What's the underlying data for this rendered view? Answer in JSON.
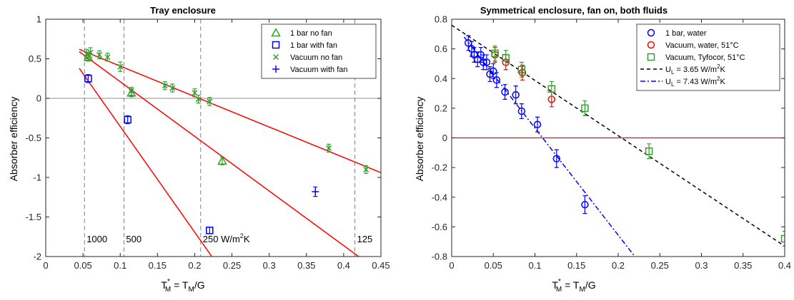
{
  "chart_data": [
    {
      "type": "scatter",
      "title": "Tray enclosure",
      "ylabel": "Absorber efficiency",
      "xlabel_parts": {
        "base": "T",
        "sup": "*",
        "sub": "M",
        "rest1": " = T",
        "sub2": "M",
        "rest2": "/G"
      },
      "xlim": [
        0,
        0.45
      ],
      "ylim": [
        -2,
        1
      ],
      "xticks": [
        0,
        0.05,
        0.1,
        0.15,
        0.2,
        0.25,
        0.3,
        0.35,
        0.4,
        0.45
      ],
      "xtick_labels": [
        "0",
        "0.05",
        "0.1",
        "0.15",
        "0.2",
        "0.25",
        "0.3",
        "0.35",
        "0.4",
        "0.45"
      ],
      "yticks": [
        -2,
        -1.5,
        -1,
        -0.5,
        0,
        0.5,
        1
      ],
      "ytick_labels": [
        "-2",
        "-1.5",
        "-1",
        "-0.5",
        "0",
        "0.5",
        "1"
      ],
      "zero_line_color": "#a6a6a6",
      "legend_position": "top-right",
      "series": [
        {
          "name": "1 bar no fan",
          "marker": "triangle",
          "color": "#33a02c",
          "x": [
            0.057,
            0.115,
            0.237
          ],
          "y": [
            0.52,
            0.07,
            -0.79
          ],
          "err": [
            0.05,
            0.05,
            0.05
          ]
        },
        {
          "name": "1 bar with fan",
          "marker": "square",
          "color": "#0000ff",
          "x": [
            0.057,
            0.11,
            0.22
          ],
          "y": [
            0.25,
            -0.27,
            -1.67
          ],
          "err": [
            0.05,
            0.05,
            0.04
          ]
        },
        {
          "name": "Vacuum no fan",
          "marker": "x",
          "color": "#33a02c",
          "x": [
            0.055,
            0.06,
            0.072,
            0.083,
            0.1,
            0.115,
            0.16,
            0.17,
            0.2,
            0.205,
            0.22,
            0.38,
            0.43
          ],
          "y": [
            0.56,
            0.58,
            0.55,
            0.52,
            0.4,
            0.09,
            0.16,
            0.13,
            0.07,
            -0.01,
            -0.04,
            -0.63,
            -0.9
          ],
          "err": [
            0.06,
            0.06,
            0.05,
            0.05,
            0.06,
            0.05,
            0.05,
            0.05,
            0.05,
            0.05,
            0.05,
            0.05,
            0.05
          ]
        },
        {
          "name": "Vacuum with fan",
          "marker": "plus",
          "color": "#0000ff",
          "x": [
            0.362
          ],
          "y": [
            -1.18
          ],
          "err": [
            0.06
          ]
        }
      ],
      "fit_lines": [
        {
          "color": "#ff0000",
          "x": [
            0.045,
            0.45
          ],
          "y": [
            0.62,
            -0.94
          ]
        },
        {
          "color": "#ff0000",
          "x": [
            0.045,
            0.42
          ],
          "y": [
            0.59,
            -2.0
          ]
        },
        {
          "color": "#ff0000",
          "x": [
            0.045,
            0.223
          ],
          "y": [
            0.38,
            -2.0
          ]
        }
      ],
      "vlines": [
        {
          "x": 0.052,
          "label": "1000"
        },
        {
          "x": 0.105,
          "label": "500"
        },
        {
          "x": 0.208,
          "label": "250 W/m",
          "label_sup": "2",
          "label_rest": "K"
        },
        {
          "x": 0.415,
          "label": "125"
        }
      ]
    },
    {
      "type": "scatter",
      "title": "Symmetrical enclosure, fan on, both fluids",
      "ylabel": "Absorber efficiency",
      "xlabel_parts": {
        "base": "T",
        "sup": "*",
        "sub": "M",
        "rest1": " = T",
        "sub2": "M",
        "rest2": "/G"
      },
      "xlim": [
        0,
        0.4
      ],
      "ylim": [
        -0.8,
        0.8
      ],
      "xticks": [
        0,
        0.05,
        0.1,
        0.15,
        0.2,
        0.25,
        0.3,
        0.35,
        0.4
      ],
      "xtick_labels": [
        "0",
        "0.05",
        "0.1",
        "0.15",
        "0.2",
        "0.25",
        "0.3",
        "0.35",
        "0.4"
      ],
      "yticks": [
        -0.8,
        -0.6,
        -0.4,
        -0.2,
        0,
        0.2,
        0.4,
        0.6,
        0.8
      ],
      "ytick_labels": [
        "-0.8",
        "-0.6",
        "-0.4",
        "-0.2",
        "0",
        "0.2",
        "0.4",
        "0.6",
        "0.8"
      ],
      "zero_line_color": "#ff0000",
      "legend_position": "top-right",
      "series": [
        {
          "name": "1 bar, water",
          "marker": "circle",
          "color": "#0000ff",
          "x": [
            0.02,
            0.024,
            0.027,
            0.031,
            0.035,
            0.038,
            0.042,
            0.046,
            0.05,
            0.054,
            0.064,
            0.077,
            0.084,
            0.103,
            0.126,
            0.16
          ],
          "y": [
            0.64,
            0.6,
            0.56,
            0.53,
            0.56,
            0.51,
            0.51,
            0.43,
            0.45,
            0.39,
            0.31,
            0.29,
            0.18,
            0.09,
            -0.14,
            -0.45
          ],
          "err": [
            0.05,
            0.05,
            0.05,
            0.05,
            0.05,
            0.05,
            0.05,
            0.05,
            0.05,
            0.05,
            0.05,
            0.06,
            0.05,
            0.05,
            0.06,
            0.06
          ]
        },
        {
          "name": "Vacuum, water, 51°C",
          "marker": "circle",
          "color": "#ff0000",
          "x": [
            0.052,
            0.065,
            0.085,
            0.12
          ],
          "y": [
            0.56,
            0.51,
            0.44,
            0.26
          ],
          "err": [
            0.05,
            0.05,
            0.05,
            0.05
          ]
        },
        {
          "name": "Vacuum, Tyfocor, 51°C",
          "marker": "square",
          "color": "#33a02c",
          "x": [
            0.052,
            0.065,
            0.084,
            0.12,
            0.16,
            0.237,
            0.4
          ],
          "y": [
            0.57,
            0.54,
            0.46,
            0.33,
            0.2,
            -0.09,
            -0.68
          ],
          "err": [
            0.05,
            0.05,
            0.05,
            0.05,
            0.05,
            0.05,
            0.05
          ]
        }
      ],
      "fit_lines": [
        {
          "name": "U",
          "name_sub": "L",
          "name_rest": " = 3.65 W/m",
          "name_sup": "2",
          "name_end": "K",
          "color": "#000000",
          "dash": "5,4",
          "x": [
            0,
            0.4
          ],
          "y": [
            0.76,
            -0.73
          ]
        },
        {
          "name": "U",
          "name_sub": "L",
          "name_rest": " = 7.43 W/m",
          "name_sup": "2",
          "name_end": "K",
          "color": "#0000ff",
          "dash": "7,3,2,3",
          "x": [
            0.015,
            0.22
          ],
          "y": [
            0.68,
            -0.8
          ]
        }
      ]
    }
  ]
}
